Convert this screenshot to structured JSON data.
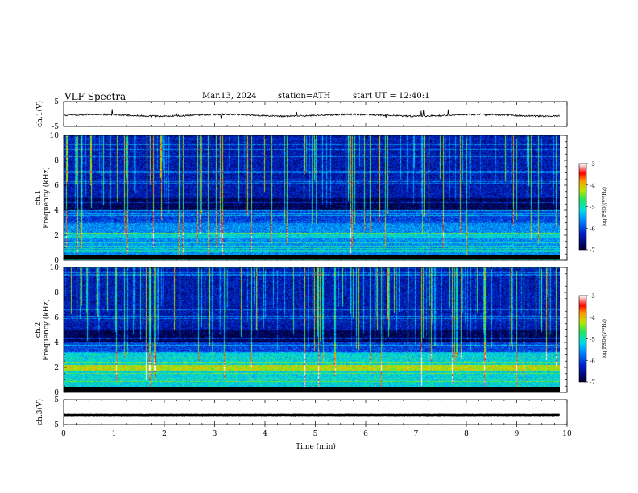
{
  "header": {
    "title": "VLF Spectra",
    "date": "Mar.13, 2024",
    "station": "station=ATH",
    "start_time": "start UT =  12:40:1"
  },
  "chart_data": [
    {
      "type": "line",
      "ylabel": "ch.1(V)",
      "ylim": [
        -5,
        5
      ],
      "yticks": [
        "5",
        "-5"
      ],
      "description_series": "ch.1 voltage waveform",
      "baseline": -0.5
    },
    {
      "type": "heatmap",
      "ylabel_top": "ch.1",
      "ylabel": "Frequency (kHz)",
      "ylim": [
        0,
        10
      ],
      "yticks": [
        "0",
        "2",
        "4",
        "6",
        "8",
        "10"
      ],
      "colorbar": {
        "label": "log(PSD)(V²/Hz)",
        "range": [
          -7,
          -3
        ],
        "ticks": [
          "-3",
          "-4",
          "-5",
          "-6",
          "-7"
        ]
      },
      "seed": 11
    },
    {
      "type": "heatmap",
      "ylabel_top": "ch.2",
      "ylabel": "Frequency (kHz)",
      "ylim": [
        0,
        10
      ],
      "yticks": [
        "0",
        "2",
        "4",
        "6",
        "8",
        "10"
      ],
      "colorbar": {
        "label": "log(PSD)(V²/Hz)",
        "range": [
          -7,
          -3
        ],
        "ticks": [
          "-3",
          "-4",
          "-5",
          "-6",
          "-7"
        ]
      },
      "seed": 37
    },
    {
      "type": "line",
      "ylabel": "ch.3(V)",
      "ylim": [
        -5,
        5
      ],
      "yticks": [
        "5",
        "-5"
      ],
      "baseline": -1.3
    }
  ],
  "xaxis": {
    "label": "Time (min)",
    "range": [
      0,
      10
    ],
    "ticks": [
      "0",
      "1",
      "2",
      "3",
      "4",
      "5",
      "6",
      "7",
      "8",
      "9",
      "10"
    ],
    "data_end": 9.85
  },
  "colors": {
    "axis": "#000000",
    "trace": "#000000"
  }
}
